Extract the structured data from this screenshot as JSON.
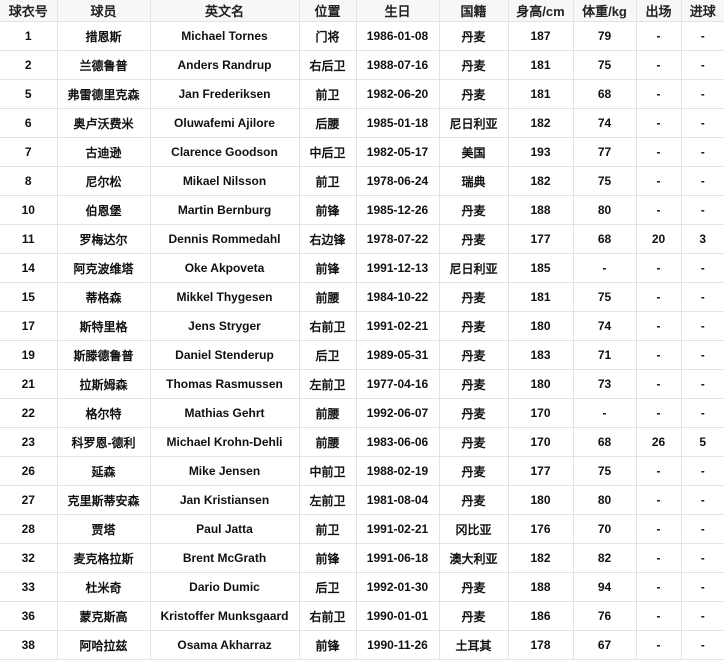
{
  "headers": [
    "球衣号",
    "球员",
    "英文名",
    "位置",
    "生日",
    "国籍",
    "身高/cm",
    "体重/kg",
    "出场",
    "进球"
  ],
  "rows": [
    [
      "1",
      "措恩斯",
      "Michael Tornes",
      "门将",
      "1986-01-08",
      "丹麦",
      "187",
      "79",
      "-",
      "-"
    ],
    [
      "2",
      "兰德鲁普",
      "Anders Randrup",
      "右后卫",
      "1988-07-16",
      "丹麦",
      "181",
      "75",
      "-",
      "-"
    ],
    [
      "5",
      "弗雷德里克森",
      "Jan Frederiksen",
      "前卫",
      "1982-06-20",
      "丹麦",
      "181",
      "68",
      "-",
      "-"
    ],
    [
      "6",
      "奥卢沃费米",
      "Oluwafemi Ajilore",
      "后腰",
      "1985-01-18",
      "尼日利亚",
      "182",
      "74",
      "-",
      "-"
    ],
    [
      "7",
      "古迪逊",
      "Clarence Goodson",
      "中后卫",
      "1982-05-17",
      "美国",
      "193",
      "77",
      "-",
      "-"
    ],
    [
      "8",
      "尼尔松",
      "Mikael Nilsson",
      "前卫",
      "1978-06-24",
      "瑞典",
      "182",
      "75",
      "-",
      "-"
    ],
    [
      "10",
      "伯恩堡",
      "Martin Bernburg",
      "前锋",
      "1985-12-26",
      "丹麦",
      "188",
      "80",
      "-",
      "-"
    ],
    [
      "11",
      "罗梅达尔",
      "Dennis Rommedahl",
      "右边锋",
      "1978-07-22",
      "丹麦",
      "177",
      "68",
      "20",
      "3"
    ],
    [
      "14",
      "阿克波维塔",
      "Oke Akpoveta",
      "前锋",
      "1991-12-13",
      "尼日利亚",
      "185",
      "-",
      "-",
      "-"
    ],
    [
      "15",
      "蒂格森",
      "Mikkel Thygesen",
      "前腰",
      "1984-10-22",
      "丹麦",
      "181",
      "75",
      "-",
      "-"
    ],
    [
      "17",
      "斯特里格",
      "Jens Stryger",
      "右前卫",
      "1991-02-21",
      "丹麦",
      "180",
      "74",
      "-",
      "-"
    ],
    [
      "19",
      "斯滕德鲁普",
      "Daniel Stenderup",
      "后卫",
      "1989-05-31",
      "丹麦",
      "183",
      "71",
      "-",
      "-"
    ],
    [
      "21",
      "拉斯姆森",
      "Thomas Rasmussen",
      "左前卫",
      "1977-04-16",
      "丹麦",
      "180",
      "73",
      "-",
      "-"
    ],
    [
      "22",
      "格尔特",
      "Mathias Gehrt",
      "前腰",
      "1992-06-07",
      "丹麦",
      "170",
      "-",
      "-",
      "-"
    ],
    [
      "23",
      "科罗恩-德利",
      "Michael Krohn-Dehli",
      "前腰",
      "1983-06-06",
      "丹麦",
      "170",
      "68",
      "26",
      "5"
    ],
    [
      "26",
      "延森",
      "Mike Jensen",
      "中前卫",
      "1988-02-19",
      "丹麦",
      "177",
      "75",
      "-",
      "-"
    ],
    [
      "27",
      "克里斯蒂安森",
      "Jan Kristiansen",
      "左前卫",
      "1981-08-04",
      "丹麦",
      "180",
      "80",
      "-",
      "-"
    ],
    [
      "28",
      "贾塔",
      "Paul Jatta",
      "前卫",
      "1991-02-21",
      "冈比亚",
      "176",
      "70",
      "-",
      "-"
    ],
    [
      "32",
      "麦克格拉斯",
      "Brent McGrath",
      "前锋",
      "1991-06-18",
      "澳大利亚",
      "182",
      "82",
      "-",
      "-"
    ],
    [
      "33",
      "杜米奇",
      "Dario Dumic",
      "后卫",
      "1992-01-30",
      "丹麦",
      "188",
      "94",
      "-",
      "-"
    ],
    [
      "36",
      "蒙克斯高",
      "Kristoffer Munksgaard",
      "右前卫",
      "1990-01-01",
      "丹麦",
      "186",
      "76",
      "-",
      "-"
    ],
    [
      "38",
      "阿哈拉兹",
      "Osama Akharraz",
      "前锋",
      "1990-11-26",
      "土耳其",
      "178",
      "67",
      "-",
      "-"
    ]
  ]
}
